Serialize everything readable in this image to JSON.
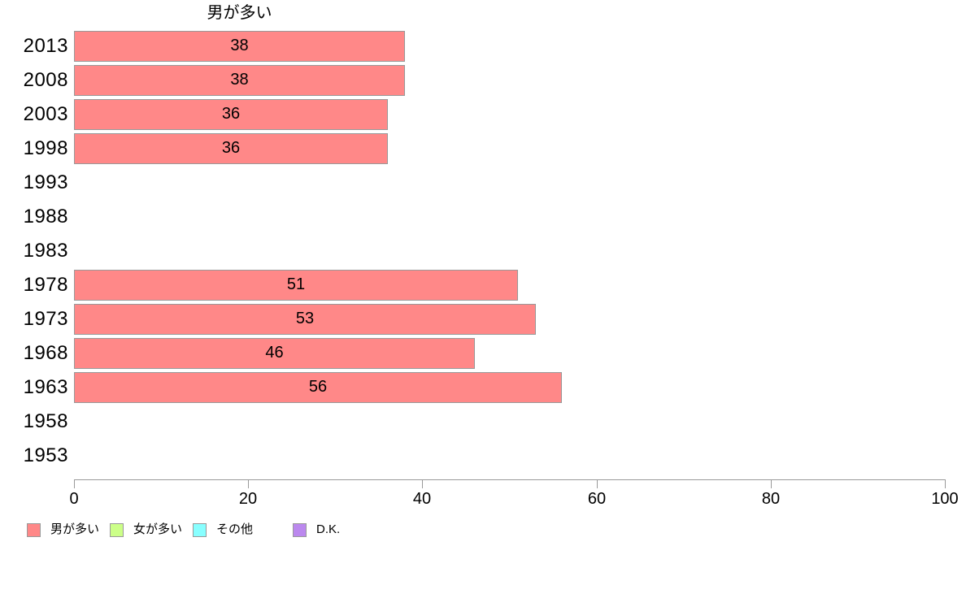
{
  "chart_data": {
    "type": "bar",
    "orientation": "horizontal",
    "title": "男が多い",
    "categories": [
      "2013",
      "2008",
      "2003",
      "1998",
      "1993",
      "1988",
      "1983",
      "1978",
      "1973",
      "1968",
      "1963",
      "1958",
      "1953"
    ],
    "series": [
      {
        "name": "男が多い",
        "color": "#ff8888",
        "border_color": "#999999",
        "values": [
          38,
          38,
          36,
          36,
          null,
          null,
          null,
          51,
          53,
          46,
          56,
          null,
          null
        ]
      }
    ],
    "xlabel": "",
    "ylabel": "",
    "xlim": [
      0,
      100
    ],
    "x_ticks": [
      0,
      20,
      40,
      60,
      80,
      100
    ],
    "grid": false,
    "legend": {
      "position": "bottom",
      "items": [
        {
          "key": "men",
          "label": "男が多い",
          "color": "#ff8888"
        },
        {
          "key": "women",
          "label": "女が多い",
          "color": "#ccff88"
        },
        {
          "key": "other",
          "label": "その他",
          "color": "#88ffff"
        },
        {
          "key": "dk",
          "label": "D.K.",
          "color": "#bb88ee"
        }
      ]
    }
  }
}
